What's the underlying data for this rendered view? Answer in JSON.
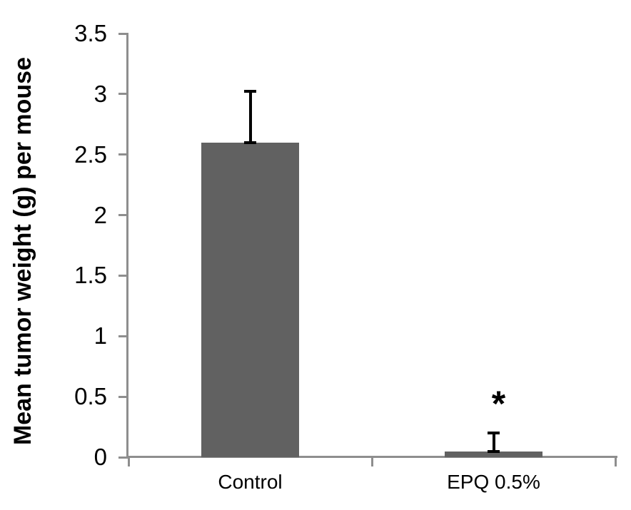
{
  "chart_data": {
    "type": "bar",
    "ylabel": "Mean tumor weight (g) per mouse",
    "categories": [
      "Control",
      "EPQ 0.5%"
    ],
    "values": [
      2.6,
      0.05
    ],
    "error_upper": [
      0.42,
      0.15
    ],
    "ylim": [
      0,
      3.5
    ],
    "ytick_step": 0.5,
    "ytick_labels": [
      "0",
      "0.5",
      "1",
      "1.5",
      "2",
      "2.5",
      "3",
      "3.5"
    ],
    "grid": false,
    "legend": "none",
    "bar_color": "#616161",
    "axis_color": "#8e8e8e",
    "error_color": "#000000",
    "text_color": "#000000",
    "annotations": [
      {
        "text": "*",
        "category_index": 1
      }
    ]
  }
}
